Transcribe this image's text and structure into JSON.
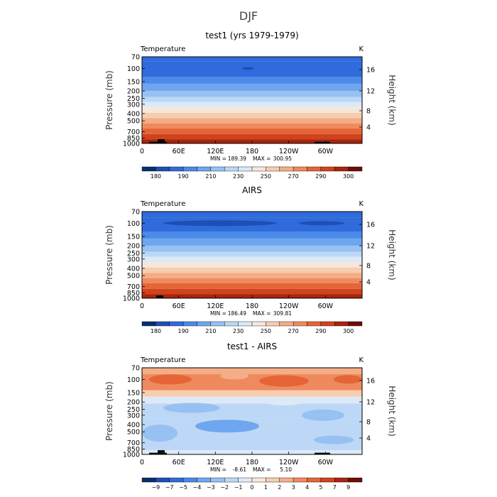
{
  "figure": {
    "title": "DJF"
  },
  "colors": {
    "temp_bar": [
      "#08306b",
      "#1f4fb3",
      "#2f6bdc",
      "#4a8ae8",
      "#6ea7ef",
      "#97c1f3",
      "#bcd8f6",
      "#dce9f7",
      "#f7e6da",
      "#f6cdb0",
      "#f4ad86",
      "#ef8a5e",
      "#e56537",
      "#d1431c",
      "#a9240d",
      "#6f0d05"
    ],
    "diff_bar": [
      "#08306b",
      "#1f4fb3",
      "#2f6bdc",
      "#4a8ae8",
      "#6ea7ef",
      "#97c1f3",
      "#bcd8f6",
      "#dce9f7",
      "#f7e6da",
      "#f6cdb0",
      "#f4ad86",
      "#ef8a5e",
      "#e56537",
      "#d1431c",
      "#a9240d",
      "#6f0d05"
    ],
    "land": "#000000"
  },
  "chart_data": [
    {
      "type": "heatmap",
      "title": "test1 (yrs 1979-1979)",
      "field_label": "Temperature",
      "units": "K",
      "ylabel": "Pressure (mb)",
      "y2label": "Height (km)",
      "xticks": [
        "0",
        "60E",
        "120E",
        "180",
        "120W",
        "60W"
      ],
      "yticks": [
        70,
        100,
        150,
        200,
        250,
        300,
        400,
        500,
        700,
        850,
        1000
      ],
      "y2ticks": [
        16,
        12,
        8,
        4
      ],
      "stats": {
        "min_label": "MIN =",
        "min": "189.39",
        "max_label": "MAX =",
        "max": "300.95"
      },
      "colorbar": [
        "180",
        "190",
        "210",
        "230",
        "250",
        "270",
        "290",
        "300"
      ],
      "levels": [
        {
          "p_top": 70,
          "p_bot": 80,
          "color": "#2f6bdc"
        },
        {
          "p_top": 80,
          "p_bot": 130,
          "color": "#2f6bdc"
        },
        {
          "p_top": 130,
          "p_bot": 160,
          "color": "#4a8ae8"
        },
        {
          "p_top": 160,
          "p_bot": 200,
          "color": "#6ea7ef"
        },
        {
          "p_top": 200,
          "p_bot": 240,
          "color": "#97c1f3"
        },
        {
          "p_top": 240,
          "p_bot": 280,
          "color": "#bcd8f6"
        },
        {
          "p_top": 280,
          "p_bot": 330,
          "color": "#dce9f7"
        },
        {
          "p_top": 330,
          "p_bot": 390,
          "color": "#f7e6da"
        },
        {
          "p_top": 390,
          "p_bot": 460,
          "color": "#f6cdb0"
        },
        {
          "p_top": 460,
          "p_bot": 540,
          "color": "#f4ad86"
        },
        {
          "p_top": 540,
          "p_bot": 630,
          "color": "#ef8a5e"
        },
        {
          "p_top": 630,
          "p_bot": 750,
          "color": "#e56537"
        },
        {
          "p_top": 750,
          "p_bot": 880,
          "color": "#d1431c"
        },
        {
          "p_top": 880,
          "p_bot": 1000,
          "color": "#a9240d"
        }
      ]
    },
    {
      "type": "heatmap",
      "title": "AIRS",
      "field_label": "Temperature",
      "units": "K",
      "ylabel": "Pressure (mb)",
      "y2label": "Height (km)",
      "xticks": [
        "0",
        "60E",
        "120E",
        "180",
        "120W",
        "60W"
      ],
      "yticks": [
        70,
        100,
        150,
        200,
        250,
        300,
        400,
        500,
        700,
        850,
        1000
      ],
      "y2ticks": [
        16,
        12,
        8,
        4
      ],
      "stats": {
        "min_label": "MIN =",
        "min": "186.49",
        "max_label": "MAX =",
        "max": "309.81"
      },
      "colorbar": [
        "180",
        "190",
        "210",
        "230",
        "250",
        "270",
        "290",
        "300"
      ],
      "levels": [
        {
          "p_top": 70,
          "p_bot": 85,
          "color": "#2f6bdc"
        },
        {
          "p_top": 85,
          "p_bot": 130,
          "color": "#2f6bdc"
        },
        {
          "p_top": 130,
          "p_bot": 160,
          "color": "#4a8ae8"
        },
        {
          "p_top": 160,
          "p_bot": 200,
          "color": "#6ea7ef"
        },
        {
          "p_top": 200,
          "p_bot": 240,
          "color": "#97c1f3"
        },
        {
          "p_top": 240,
          "p_bot": 280,
          "color": "#bcd8f6"
        },
        {
          "p_top": 280,
          "p_bot": 330,
          "color": "#dce9f7"
        },
        {
          "p_top": 330,
          "p_bot": 390,
          "color": "#f7e6da"
        },
        {
          "p_top": 390,
          "p_bot": 460,
          "color": "#f6cdb0"
        },
        {
          "p_top": 460,
          "p_bot": 540,
          "color": "#f4ad86"
        },
        {
          "p_top": 540,
          "p_bot": 630,
          "color": "#ef8a5e"
        },
        {
          "p_top": 630,
          "p_bot": 750,
          "color": "#e56537"
        },
        {
          "p_top": 750,
          "p_bot": 880,
          "color": "#d1431c"
        },
        {
          "p_top": 880,
          "p_bot": 1000,
          "color": "#a9240d"
        }
      ]
    },
    {
      "type": "heatmap",
      "title": "test1 - AIRS",
      "field_label": "Temperature",
      "units": "K",
      "ylabel": "Pressure (mb)",
      "y2label": "Height (km)",
      "xticks": [
        "0",
        "60E",
        "120E",
        "180",
        "120W",
        "60W"
      ],
      "yticks": [
        70,
        100,
        150,
        200,
        250,
        300,
        400,
        500,
        700,
        850,
        1000
      ],
      "y2ticks": [
        16,
        12,
        8,
        4
      ],
      "stats": {
        "min_label": "MIN =",
        "min": "-8.61",
        "max_label": "MAX =",
        "max": "5.10"
      },
      "colorbar": [
        "−9",
        "−7",
        "−5",
        "−4",
        "−3",
        "−2",
        "−1",
        "0",
        "1",
        "2",
        "3",
        "4",
        "5",
        "7",
        "9"
      ],
      "levels": [
        {
          "p_top": 70,
          "p_bot": 85,
          "color": "#f4ad86"
        },
        {
          "p_top": 85,
          "p_bot": 140,
          "color": "#ef8a5e"
        },
        {
          "p_top": 140,
          "p_bot": 170,
          "color": "#f6cdb0"
        },
        {
          "p_top": 170,
          "p_bot": 210,
          "color": "#dce9f7"
        },
        {
          "p_top": 210,
          "p_bot": 330,
          "color": "#bcd8f6"
        },
        {
          "p_top": 330,
          "p_bot": 520,
          "color": "#bcd8f6"
        },
        {
          "p_top": 520,
          "p_bot": 880,
          "color": "#bcd8f6"
        },
        {
          "p_top": 880,
          "p_bot": 1000,
          "color": "#dce9f7"
        }
      ]
    }
  ]
}
